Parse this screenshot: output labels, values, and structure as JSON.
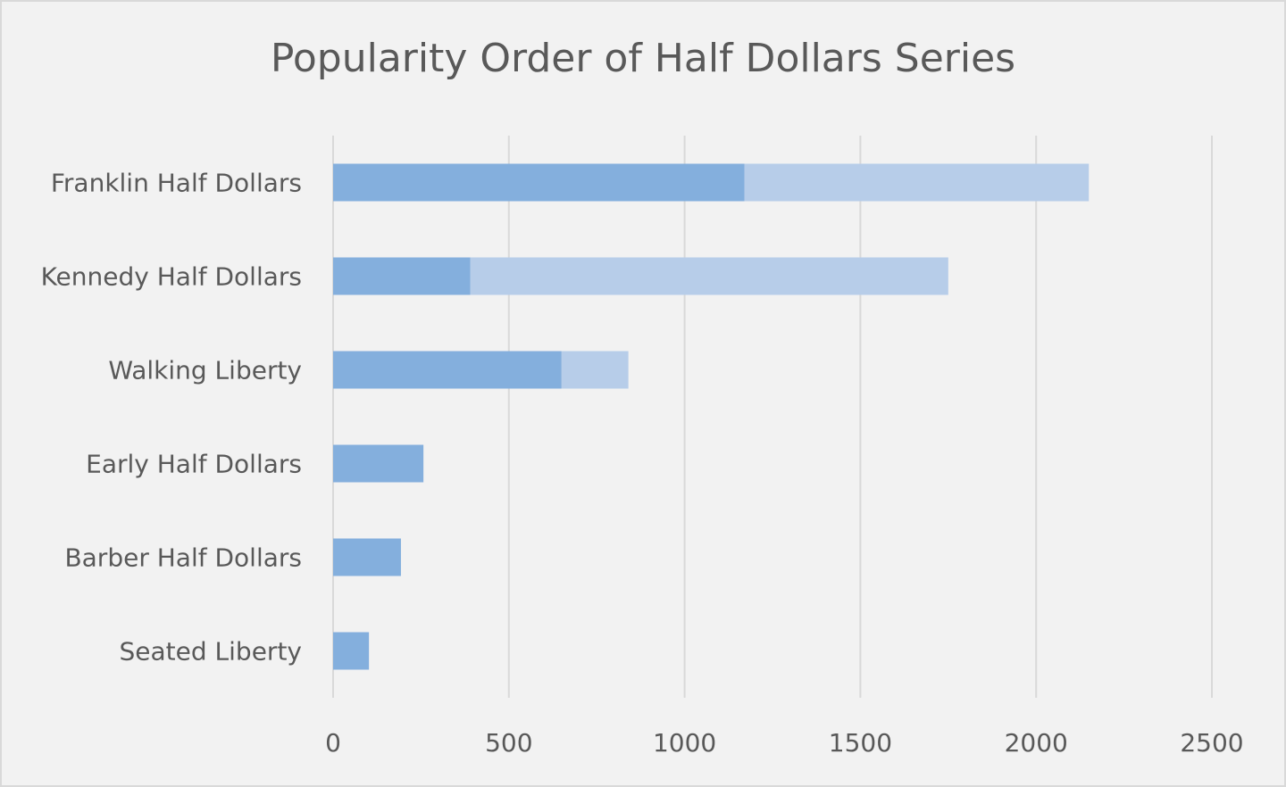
{
  "chart_data": {
    "type": "bar",
    "orientation": "horizontal",
    "stacked": true,
    "title": "Popularity Order of Half Dollars Series",
    "categories": [
      "Franklin Half Dollars",
      "Kennedy Half Dollars",
      "Walking Liberty",
      "Early Half Dollars",
      "Barber Half Dollars",
      "Seated Liberty"
    ],
    "series": [
      {
        "values": [
          1170,
          390,
          650,
          257,
          193,
          102
        ],
        "color": "#84afdd"
      },
      {
        "values": [
          980,
          1360,
          190,
          0,
          0,
          0
        ],
        "color": "#b7cde9"
      }
    ],
    "xlim": [
      0,
      2500
    ],
    "xticks": [
      "0",
      "500",
      "1000",
      "1500",
      "2000",
      "2500"
    ],
    "grid": true,
    "legend": "none"
  }
}
